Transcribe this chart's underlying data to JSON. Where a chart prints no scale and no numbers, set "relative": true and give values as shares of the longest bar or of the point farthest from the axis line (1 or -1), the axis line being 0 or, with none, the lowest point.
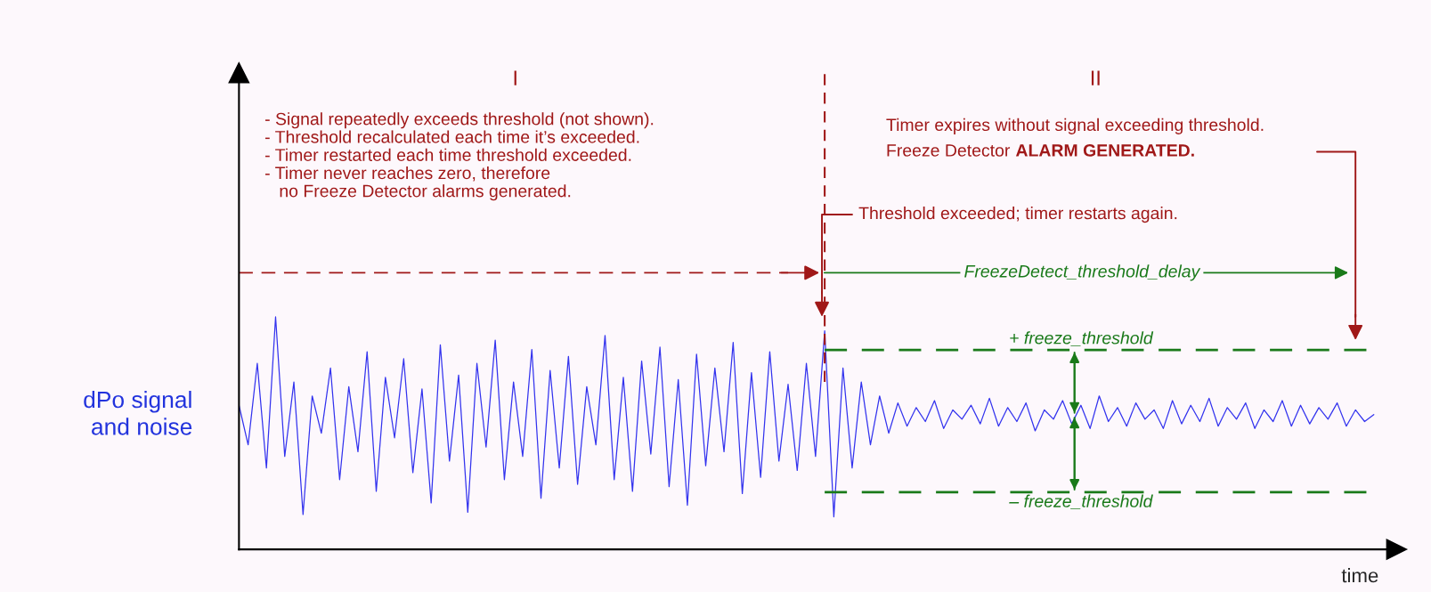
{
  "chart_data": {
    "type": "line",
    "relative": true,
    "categories": [
      null,
      null,
      null,
      null,
      null,
      null,
      null,
      null,
      null,
      null,
      null,
      null,
      null,
      null,
      null,
      null,
      null,
      null,
      null,
      null,
      null,
      null,
      null,
      null,
      null,
      null,
      null,
      null,
      null,
      null,
      null,
      null,
      null,
      null,
      null,
      null,
      null,
      null,
      null,
      null,
      null,
      null,
      null,
      null,
      null,
      null,
      null,
      null,
      null,
      null,
      null,
      null,
      null,
      null,
      null,
      null,
      null,
      null,
      null,
      null,
      null,
      null,
      null,
      null,
      null,
      null,
      null,
      null,
      null,
      null,
      null,
      null,
      null,
      null,
      null,
      null,
      null,
      null,
      null,
      null,
      null,
      null,
      null,
      null,
      null,
      null,
      null,
      null,
      null,
      null,
      null,
      null,
      null,
      null,
      null,
      null,
      null,
      null,
      null,
      null,
      null,
      null,
      null,
      null,
      null,
      null,
      null,
      null,
      null,
      null,
      null,
      null,
      null,
      null,
      null,
      null,
      null,
      null,
      null,
      null,
      null,
      null,
      null,
      null,
      null
    ],
    "series": [
      {
        "color": "#3333ee",
        "values": [
          0.62,
          0.45,
          0.8,
          0.35,
          1.0,
          0.4,
          0.72,
          0.15,
          0.66,
          0.5,
          0.78,
          0.3,
          0.7,
          0.42,
          0.85,
          0.25,
          0.74,
          0.48,
          0.82,
          0.33,
          0.69,
          0.2,
          0.88,
          0.38,
          0.75,
          0.16,
          0.8,
          0.44,
          0.9,
          0.3,
          0.72,
          0.4,
          0.86,
          0.22,
          0.77,
          0.35,
          0.83,
          0.28,
          0.7,
          0.45,
          0.92,
          0.3,
          0.74,
          0.25,
          0.81,
          0.41,
          0.87,
          0.27,
          0.73,
          0.19,
          0.84,
          0.36,
          0.78,
          0.42,
          0.89,
          0.24,
          0.76,
          0.31,
          0.85,
          0.38,
          0.71,
          0.34,
          0.8,
          0.4,
          0.94,
          0.14,
          0.78,
          0.35,
          0.72,
          0.45,
          0.66,
          0.5,
          0.63,
          0.53,
          0.61,
          0.55,
          0.64,
          0.52,
          0.6,
          0.56,
          0.62,
          0.54,
          0.65,
          0.53,
          0.61,
          0.55,
          0.63,
          0.51,
          0.6,
          0.56,
          0.64,
          0.54,
          0.62,
          0.52,
          0.66,
          0.55,
          0.61,
          0.53,
          0.63,
          0.56,
          0.6,
          0.52,
          0.64,
          0.54,
          0.62,
          0.55,
          0.65,
          0.53,
          0.61,
          0.56,
          0.63,
          0.52,
          0.6,
          0.55,
          0.64,
          0.53,
          0.62,
          0.54,
          0.61,
          0.56,
          0.63,
          0.53,
          0.6,
          0.55,
          0.58
        ]
      }
    ],
    "ylabel": "dPo signal\nand noise",
    "xlabel": "time",
    "ref_lines": [
      {
        "axis": "y",
        "value": 0.858,
        "label": "+ freeze_threshold",
        "color": "#1a7a1a",
        "line_style": "dashed"
      },
      {
        "axis": "y",
        "value": 0.246,
        "label": "– freeze_threshold",
        "color": "#1a7a1a",
        "line_style": "dashed"
      }
    ],
    "annotations": [
      "I",
      "II",
      "- Signal repeatedly exceeds threshold (not shown).\n- Threshold recalculated each time it’s exceeded.\n- Timer restarted each time threshold exceeded.\n- Timer never reaches zero, therefore\n   no Freeze Detector alarms generated.",
      "Timer expires without signal exceeding threshold.",
      "Freeze Detector ",
      "ALARM GENERATED.",
      "Threshold exceeded; timer restarts again.",
      "FreezeDetect_threshold_delay"
    ],
    "legend": false
  }
}
